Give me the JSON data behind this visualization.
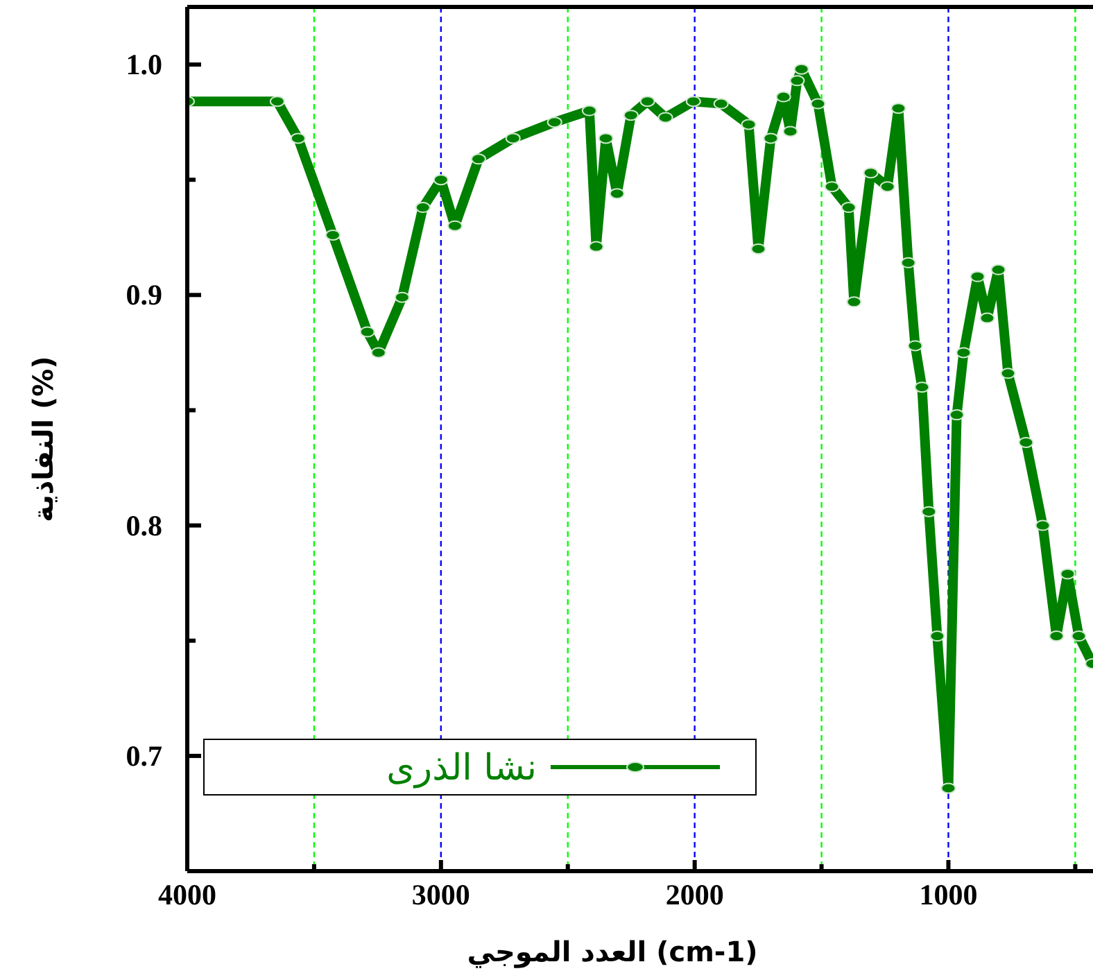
{
  "chart_data": {
    "type": "line",
    "xlabel": "العدد الموجي (cm-1)",
    "ylabel": "النفاذية (%)",
    "xlim": [
      4000,
      430
    ],
    "ylim": [
      0.65,
      1.025
    ],
    "xticks": [
      4000,
      {
        "value": 3500,
        "label": null
      },
      3000,
      {
        "value": 2500,
        "label": null
      },
      2000,
      {
        "value": 1500,
        "label": null
      },
      1000,
      {
        "value": 500,
        "label": null
      }
    ],
    "yticks": [
      0.7,
      {
        "value": 0.75,
        "label": null
      },
      0.8,
      {
        "value": 0.85,
        "label": null
      },
      0.9,
      {
        "value": 0.95,
        "label": null
      },
      {
        "value": 1.0,
        "label": "1.0"
      }
    ],
    "grid": "x",
    "legend": "bottom left",
    "marker": "circle",
    "line_style": "solid",
    "series": [
      {
        "name": "نشا الذرى",
        "color": "#008000",
        "x": [
          4000,
          3645,
          3563,
          3426,
          3290,
          3246,
          3153,
          3071,
          3000,
          2945,
          2852,
          2716,
          2552,
          2415,
          2388,
          2350,
          2306,
          2251,
          2186,
          2115,
          2005,
          1896,
          1787,
          1749,
          1700,
          1650,
          1623,
          1596,
          1579,
          1514,
          1459,
          1393,
          1372,
          1306,
          1240,
          1197,
          1158,
          1131,
          1104,
          1077,
          1044,
          1000,
          967,
          940,
          885,
          847,
          803,
          765,
          694,
          628,
          574,
          530,
          486,
          432
        ],
        "values": [
          0.984,
          0.984,
          0.968,
          0.926,
          0.884,
          0.875,
          0.899,
          0.938,
          0.95,
          0.93,
          0.959,
          0.968,
          0.975,
          0.98,
          0.921,
          0.968,
          0.944,
          0.978,
          0.984,
          0.977,
          0.984,
          0.983,
          0.974,
          0.92,
          0.968,
          0.986,
          0.971,
          0.993,
          0.998,
          0.983,
          0.947,
          0.938,
          0.897,
          0.953,
          0.947,
          0.981,
          0.914,
          0.878,
          0.86,
          0.806,
          0.752,
          0.686,
          0.848,
          0.875,
          0.908,
          0.89,
          0.911,
          0.866,
          0.836,
          0.8,
          0.752,
          0.779,
          0.752,
          0.74
        ]
      }
    ]
  }
}
